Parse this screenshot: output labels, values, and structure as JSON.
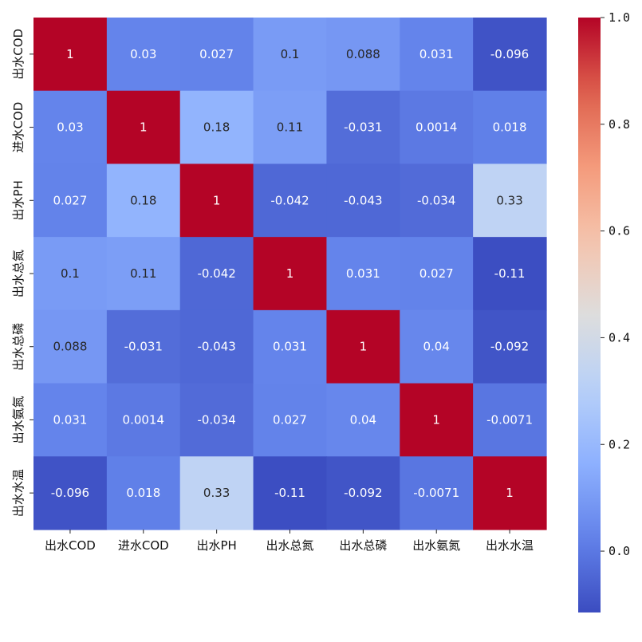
{
  "chart_data": {
    "type": "heatmap",
    "colormap": "coolwarm",
    "vmin": -0.115,
    "vmax": 1.0,
    "x_labels": [
      "出水COD",
      "进水COD",
      "出水PH",
      "出水总氮",
      "出水总磷",
      "出水氨氮",
      "出水水温"
    ],
    "y_labels": [
      "出水COD",
      "进水COD",
      "出水PH",
      "出水总氮",
      "出水总磷",
      "出水氨氮",
      "出水水温"
    ],
    "values": [
      [
        1,
        0.03,
        0.027,
        0.1,
        0.088,
        0.031,
        -0.096
      ],
      [
        0.03,
        1,
        0.18,
        0.11,
        -0.031,
        0.0014,
        0.018
      ],
      [
        0.027,
        0.18,
        1,
        -0.042,
        -0.043,
        -0.034,
        0.33
      ],
      [
        0.1,
        0.11,
        -0.042,
        1,
        0.031,
        0.027,
        -0.11
      ],
      [
        0.088,
        -0.031,
        -0.043,
        0.031,
        1,
        0.04,
        -0.092
      ],
      [
        0.031,
        0.0014,
        -0.034,
        0.027,
        0.04,
        1,
        -0.0071
      ],
      [
        -0.096,
        0.018,
        0.33,
        -0.11,
        -0.092,
        -0.0071,
        1
      ]
    ],
    "annotations": [
      [
        "1",
        "0.03",
        "0.027",
        "0.1",
        "0.088",
        "0.031",
        "-0.096"
      ],
      [
        "0.03",
        "1",
        "0.18",
        "0.11",
        "-0.031",
        "0.0014",
        "0.018"
      ],
      [
        "0.027",
        "0.18",
        "1",
        "-0.042",
        "-0.043",
        "-0.034",
        "0.33"
      ],
      [
        "0.1",
        "0.11",
        "-0.042",
        "1",
        "0.031",
        "0.027",
        "-0.11"
      ],
      [
        "0.088",
        "-0.031",
        "-0.043",
        "0.031",
        "1",
        "0.04",
        "-0.092"
      ],
      [
        "0.031",
        "0.0014",
        "-0.034",
        "0.027",
        "0.04",
        "1",
        "-0.0071"
      ],
      [
        "-0.096",
        "0.018",
        "0.33",
        "-0.11",
        "-0.092",
        "-0.0071",
        "1"
      ]
    ],
    "colorbar": {
      "ticks": [
        0.0,
        0.2,
        0.4,
        0.6,
        0.8,
        1.0
      ],
      "tick_labels": [
        "0.0",
        "0.2",
        "0.4",
        "0.6",
        "0.8",
        "1.0"
      ],
      "position": "right"
    },
    "title": "",
    "xlabel": "",
    "ylabel": "",
    "grid": false
  }
}
